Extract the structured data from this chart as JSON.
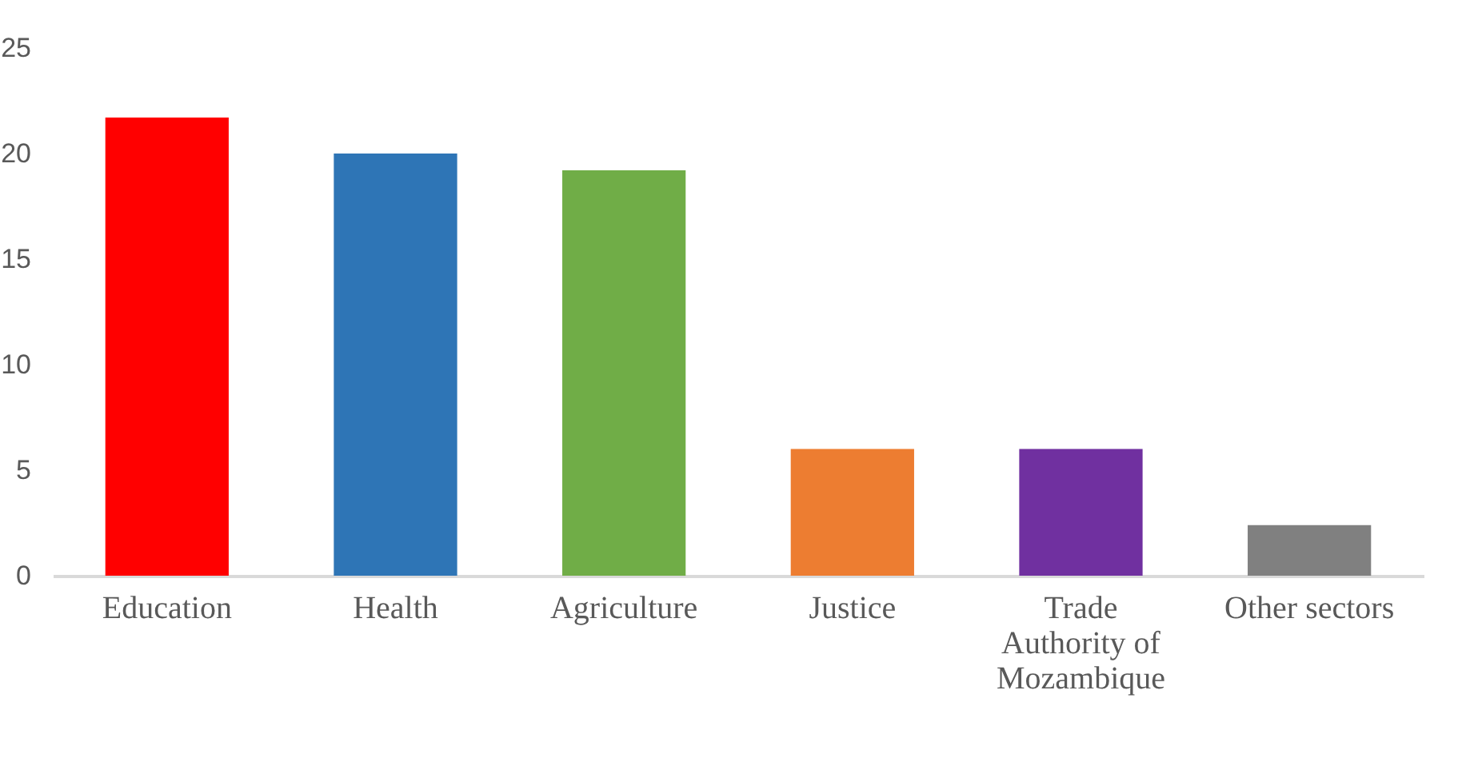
{
  "chart_data": {
    "type": "bar",
    "categories": [
      "Education",
      "Health",
      "Agriculture",
      "Justice",
      "Trade Authority of Mozambique",
      "Other sectors"
    ],
    "values": [
      21.7,
      20.0,
      19.2,
      6.0,
      6.0,
      2.4
    ],
    "colors": [
      "#ff0000",
      "#2e75b6",
      "#70ad47",
      "#ed7d31",
      "#7030a0",
      "#808080"
    ],
    "ylim": [
      0,
      25
    ],
    "yticks": [
      0,
      5,
      10,
      15,
      20,
      25
    ],
    "grid": false
  }
}
